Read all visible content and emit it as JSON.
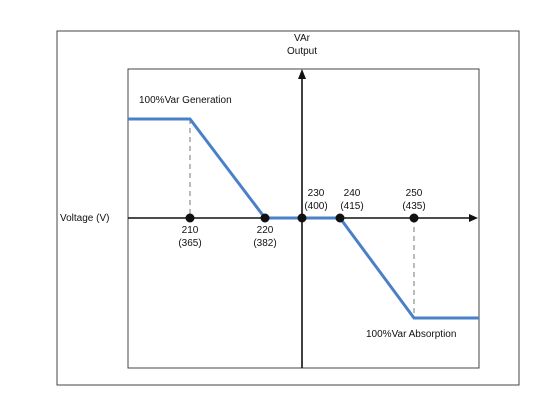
{
  "chart_data": {
    "type": "line",
    "y_axis_title": [
      "VAr",
      "Output"
    ],
    "x_axis_label": "Voltage (V)",
    "annotations": {
      "generation": "100%Var Generation",
      "absorption": "100%Var Absorption"
    },
    "points": [
      {
        "x": 210,
        "line1": "210",
        "line2": "(365)"
      },
      {
        "x": 220,
        "line1": "220",
        "line2": "(382)"
      },
      {
        "x": 230,
        "line1": "230",
        "line2": "(400)"
      },
      {
        "x": 240,
        "line1": "240",
        "line2": "(415)"
      },
      {
        "x": 250,
        "line1": "250",
        "line2": "(435)"
      }
    ],
    "curve": {
      "x": [
        210,
        220,
        230,
        240,
        250
      ],
      "y": [
        100,
        0,
        0,
        0,
        -100
      ],
      "y_unit": "% VAr"
    },
    "colors": {
      "curve": "#4a80c8",
      "axis": "#111111",
      "marker": "#111111",
      "dashed": "#777777"
    }
  }
}
